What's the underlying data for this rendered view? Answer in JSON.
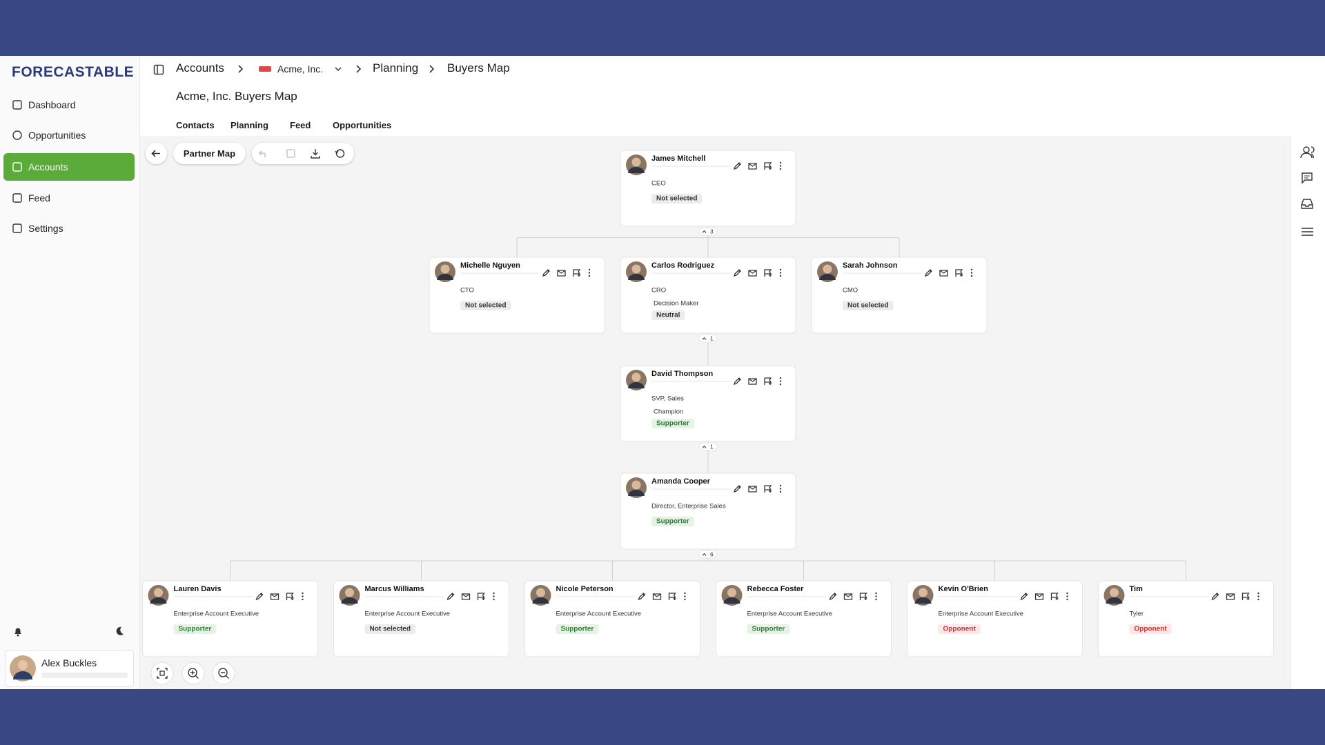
{
  "sidebar": {
    "logo": "FORECASTABLE",
    "nav": [
      "Dashboard",
      "Opportunities",
      "Accounts",
      "Feed",
      "Settings"
    ],
    "active_index": 2,
    "active_color": "#5aab3a",
    "user": "Alex Buckles"
  },
  "breadcrumb": [
    "Accounts",
    "Acme, Inc.",
    "Planning",
    "Buyers Map"
  ],
  "page_title": "Acme, Inc. Buyers Map",
  "tabs": [
    "Contacts",
    "Planning",
    "Feed",
    "Opportunities"
  ],
  "toolbar": {
    "map_name": "Partner Map"
  },
  "org": {
    "root": {
      "name": "James Mitchell",
      "title": "CEO",
      "status": "Not selected",
      "status_color": "#333333",
      "status_bg": "#ececec",
      "count": "3",
      "children": [
        {
          "name": "Michelle Nguyen",
          "title": "CTO",
          "status": "Not selected",
          "status_color": "#333333",
          "status_bg": "#ececec"
        },
        {
          "name": "Carlos Rodriguez",
          "title": "CRO",
          "role": "Decision Maker",
          "status": "Neutral",
          "status_color": "#333333",
          "status_bg": "#ececec",
          "count": "1",
          "children": [
            {
              "name": "David Thompson",
              "title": "SVP, Sales",
              "role": "Champion",
              "status": "Supporter",
              "status_color": "#2e7d32",
              "status_bg": "#e5f3e5",
              "count": "1",
              "children": [
                {
                  "name": "Amanda Cooper",
                  "title": "Director, Enterprise Sales",
                  "status": "Supporter",
                  "status_color": "#2e7d32",
                  "status_bg": "#e5f3e5",
                  "count": "6",
                  "children": [
                    {
                      "name": "Lauren Davis",
                      "title": "Enterprise Account Executive",
                      "status": "Supporter",
                      "status_color": "#2e7d32",
                      "status_bg": "#e5f3e5"
                    },
                    {
                      "name": "Marcus Williams",
                      "title": "Enterprise Account Executive",
                      "status": "Not selected",
                      "status_color": "#333333",
                      "status_bg": "#ececec"
                    },
                    {
                      "name": "Nicole Peterson",
                      "title": "Enterprise Account Executive",
                      "status": "Supporter",
                      "status_color": "#2e7d32",
                      "status_bg": "#e5f3e5"
                    },
                    {
                      "name": "Rebecca Foster",
                      "title": "Enterprise Account Executive",
                      "status": "Supporter",
                      "status_color": "#2e7d32",
                      "status_bg": "#e5f3e5"
                    },
                    {
                      "name": "Kevin O'Brien",
                      "title": "Enterprise Account Executive",
                      "status": "Opponent",
                      "status_color": "#d32f2f",
                      "status_bg": "#fde7e7"
                    },
                    {
                      "name": "Tim",
                      "title": "Tyler",
                      "status": "Opponent",
                      "status_color": "#d32f2f",
                      "status_bg": "#fde7e7"
                    }
                  ]
                }
              ]
            }
          ]
        },
        {
          "name": "Sarah Johnson",
          "title": "CMO",
          "status": "Not selected",
          "status_color": "#333333",
          "status_bg": "#ececec"
        }
      ]
    }
  }
}
